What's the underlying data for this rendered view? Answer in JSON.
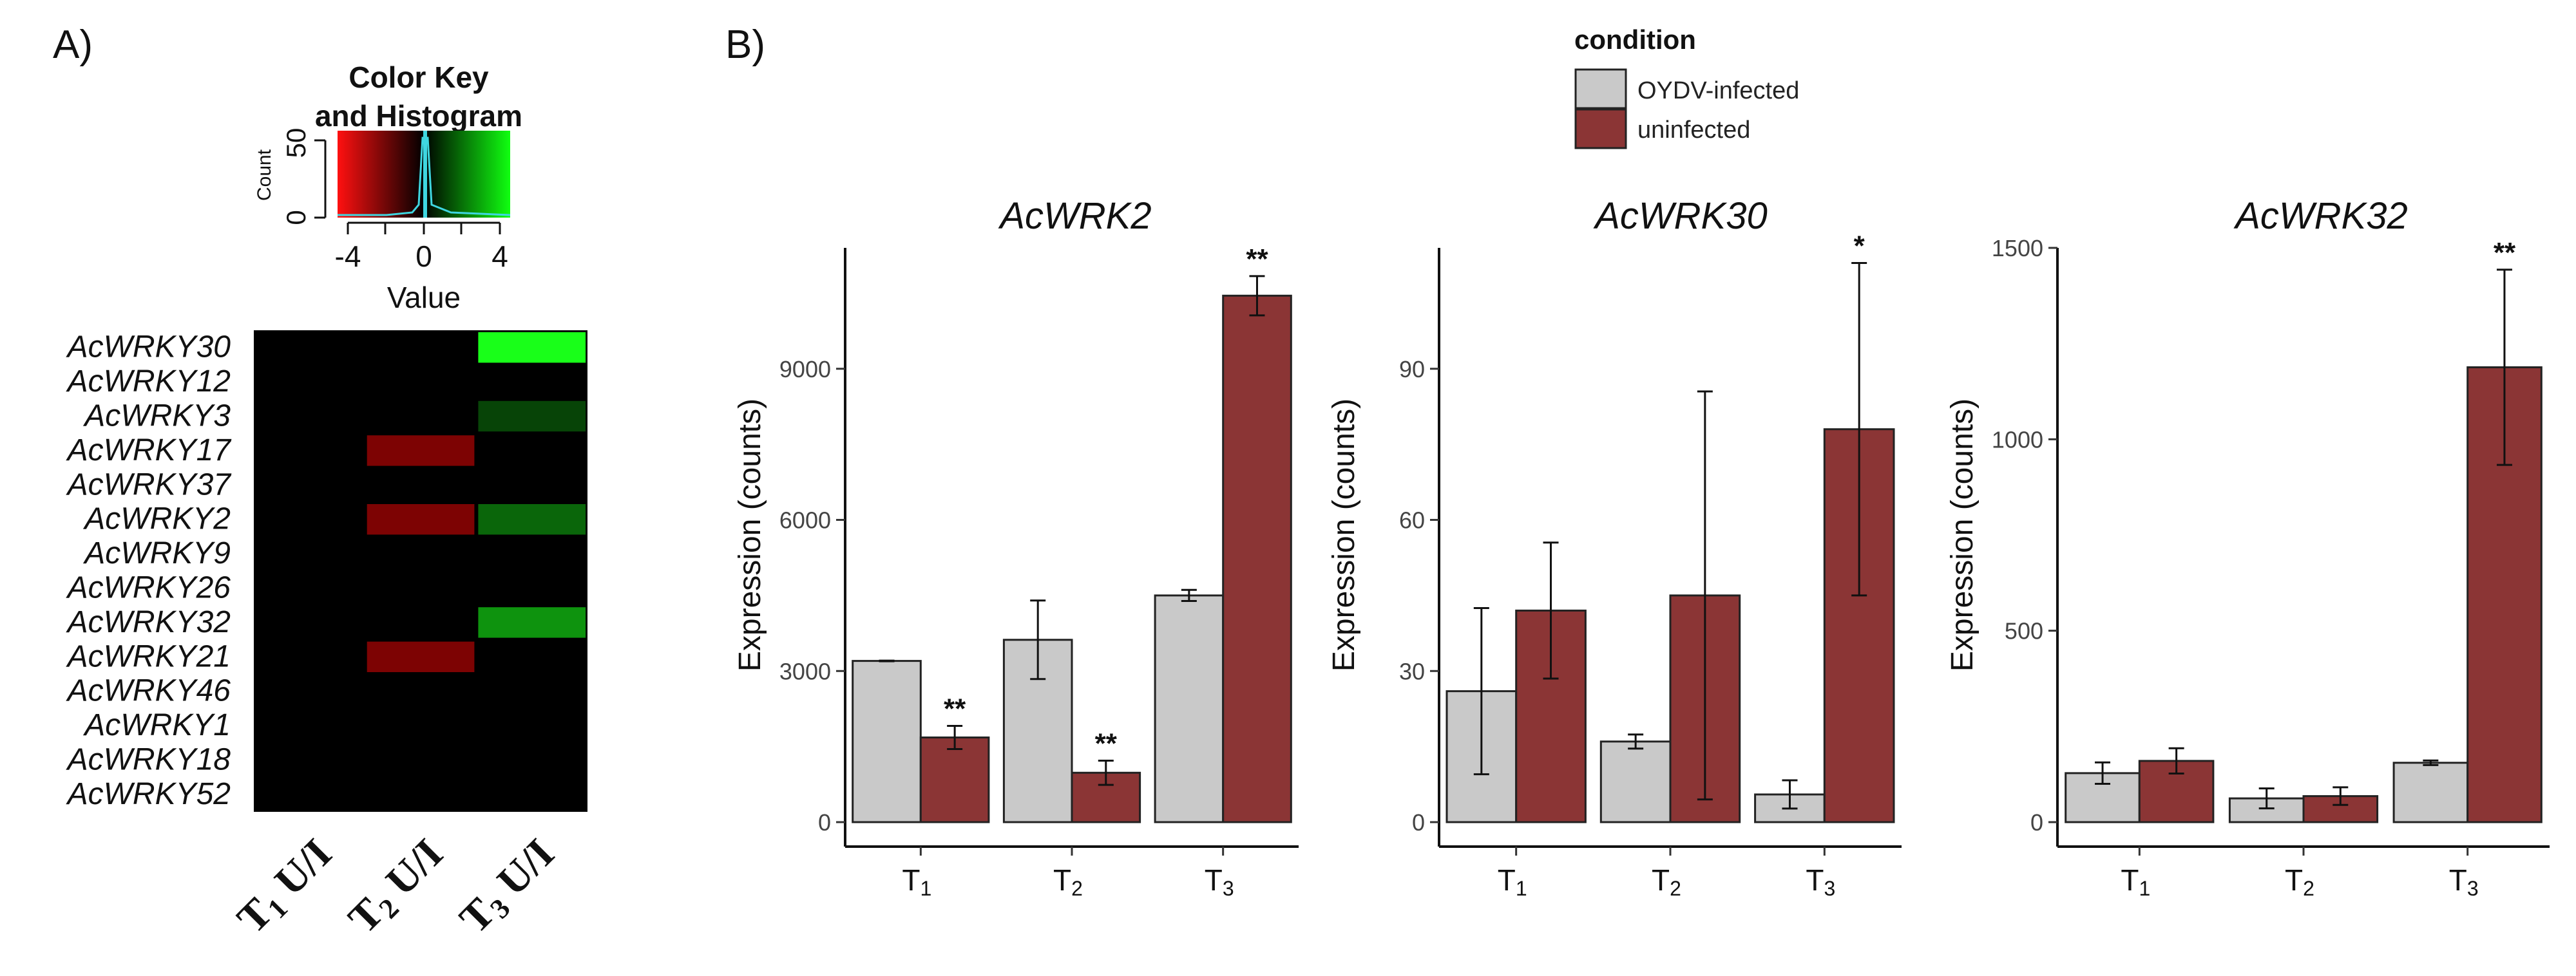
{
  "panel_a": {
    "label": "A)",
    "color_key": {
      "title_line1": "Color Key",
      "title_line2": "and Histogram",
      "count_label": "Count",
      "count_ticks": [
        "0",
        "50"
      ],
      "value_label": "Value",
      "value_ticks": [
        "-4",
        "0",
        "4"
      ]
    },
    "columns": [
      {
        "prefix": "T",
        "sub": "1",
        "suffix": " U/I"
      },
      {
        "prefix": "T",
        "sub": "2",
        "suffix": " U/I"
      },
      {
        "prefix": "T",
        "sub": "3",
        "suffix": " U/I"
      }
    ],
    "colors": {
      "background": "#000000",
      "strong_green": "#19ff19",
      "dark_green": "#0f3a0f",
      "mid_green": "#0b5a12",
      "green": "#148a18",
      "dark_red": "#5c0707",
      "black": "#000000"
    }
  },
  "panel_b": {
    "label": "B)",
    "legend": {
      "title": "condition",
      "items": [
        {
          "label": "OYDV-infected",
          "color": "#c9c9c9"
        },
        {
          "label": "uninfected",
          "color": "#8b3535"
        }
      ]
    },
    "x_tick_labels": [
      {
        "prefix": "T",
        "sub": "1"
      },
      {
        "prefix": "T",
        "sub": "2"
      },
      {
        "prefix": "T",
        "sub": "3"
      }
    ]
  },
  "chart_data": [
    {
      "type": "heatmap",
      "title": "Color Key and Histogram",
      "value_range": [
        -5,
        5
      ],
      "rows": [
        "AcWRKY30",
        "AcWRKY12",
        "AcWRKY3",
        "AcWRKY17",
        "AcWRKY37",
        "AcWRKY2",
        "AcWRKY9",
        "AcWRKY26",
        "AcWRKY32",
        "AcWRKY21",
        "AcWRKY46",
        "AcWRKY1",
        "AcWRKY18",
        "AcWRKY52"
      ],
      "columns": [
        "T1 U/I",
        "T2 U/I",
        "T3 U/I"
      ],
      "values": [
        [
          0,
          0,
          4.5
        ],
        [
          0,
          0,
          0
        ],
        [
          0,
          0,
          1.2
        ],
        [
          0,
          -2.2,
          0
        ],
        [
          0,
          0,
          0
        ],
        [
          0,
          -2.2,
          1.8
        ],
        [
          0,
          0,
          0
        ],
        [
          0,
          0,
          0
        ],
        [
          0,
          0,
          2.6
        ],
        [
          0,
          -2.2,
          0
        ],
        [
          0,
          0,
          0
        ],
        [
          0,
          0,
          0
        ],
        [
          0,
          0,
          0
        ],
        [
          0,
          0,
          0
        ]
      ]
    },
    {
      "type": "bar",
      "title": "AcWRK2",
      "xlabel": "",
      "ylabel": "Expression (counts)",
      "categories": [
        "T1",
        "T2",
        "T3"
      ],
      "ylim": [
        0,
        11400
      ],
      "yticks": [
        0,
        3000,
        6000,
        9000
      ],
      "series": [
        {
          "name": "OYDV-infected",
          "values": [
            3200,
            3620,
            4500
          ],
          "errors": [
            0,
            780,
            110
          ]
        },
        {
          "name": "uninfected",
          "values": [
            1680,
            980,
            10450
          ],
          "errors": [
            230,
            240,
            390
          ]
        }
      ],
      "annotations": [
        {
          "category": "T1",
          "series": "uninfected",
          "text": "**"
        },
        {
          "category": "T2",
          "series": "uninfected",
          "text": "**"
        },
        {
          "category": "T3",
          "series": "uninfected",
          "text": "**"
        }
      ]
    },
    {
      "type": "bar",
      "title": "AcWRK30",
      "xlabel": "",
      "ylabel": "Expression (counts)",
      "categories": [
        "T1",
        "T2",
        "T3"
      ],
      "ylim": [
        0,
        114
      ],
      "yticks": [
        0,
        30,
        60,
        90
      ],
      "series": [
        {
          "name": "OYDV-infected",
          "values": [
            26,
            16,
            5.5
          ],
          "errors": [
            16.5,
            1.4,
            2.8
          ]
        },
        {
          "name": "uninfected",
          "values": [
            42,
            45,
            78
          ],
          "errors": [
            13.5,
            40.5,
            33
          ]
        }
      ],
      "annotations": [
        {
          "category": "T3",
          "series": "uninfected",
          "text": "*"
        }
      ]
    },
    {
      "type": "bar",
      "title": "AcWRK32",
      "xlabel": "",
      "ylabel": "Expression (counts)",
      "categories": [
        "T1",
        "T2",
        "T3"
      ],
      "ylim": [
        0,
        1500
      ],
      "yticks": [
        0,
        500,
        1000,
        1500
      ],
      "series": [
        {
          "name": "OYDV-infected",
          "values": [
            128,
            62,
            155
          ],
          "errors": [
            28,
            26,
            6
          ]
        },
        {
          "name": "uninfected",
          "values": [
            160,
            68,
            1188
          ],
          "errors": [
            33,
            23,
            255
          ]
        }
      ],
      "annotations": [
        {
          "category": "T3",
          "series": "uninfected",
          "text": "**"
        }
      ]
    }
  ]
}
